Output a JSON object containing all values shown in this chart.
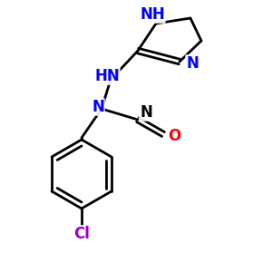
{
  "background": "#ffffff",
  "bond_color": "#000000",
  "blue_color": "#0000ff",
  "red_color": "#ff0000",
  "purple_color": "#9900cc",
  "line_width": 2.0,
  "font_size": 12,
  "figsize": [
    3.0,
    3.0
  ],
  "dpi": 100,
  "xlim": [
    0,
    300
  ],
  "ylim": [
    0,
    300
  ]
}
